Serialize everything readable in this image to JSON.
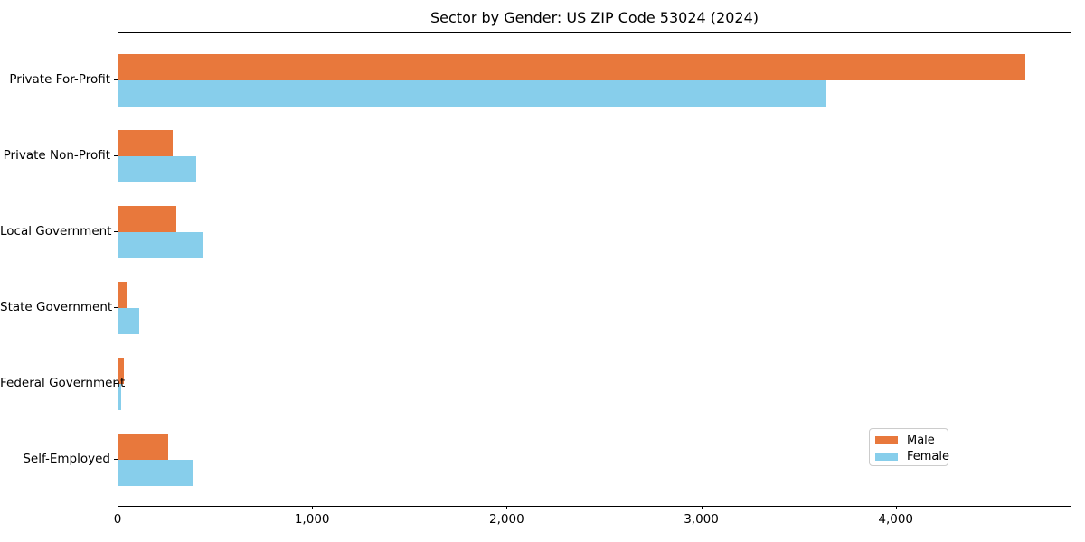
{
  "chart_data": {
    "type": "bar",
    "orientation": "horizontal",
    "title": "Sector by Gender: US ZIP Code 53024 (2024)",
    "categories": [
      "Private For-Profit",
      "Private Non-Profit",
      "Local Government",
      "State Government",
      "Federal Government",
      "Self-Employed"
    ],
    "series": [
      {
        "name": "Male",
        "color": "#e8783c",
        "values": [
          4670,
          280,
          300,
          40,
          28,
          255
        ]
      },
      {
        "name": "Female",
        "color": "#87ceeb",
        "values": [
          3645,
          400,
          440,
          105,
          13,
          380
        ]
      }
    ],
    "xlabel": "",
    "ylabel": "",
    "xlim": [
      0,
      4903
    ],
    "x_ticks": [
      {
        "value": 0,
        "label": "0"
      },
      {
        "value": 1000,
        "label": "1,000"
      },
      {
        "value": 2000,
        "label": "2,000"
      },
      {
        "value": 3000,
        "label": "3,000"
      },
      {
        "value": 4000,
        "label": "4,000"
      }
    ],
    "grid": false,
    "legend_position": "lower right",
    "colors": {
      "male": "#e8783c",
      "female": "#87ceeb",
      "spine": "#000000",
      "legend_border": "#cccccc"
    }
  }
}
